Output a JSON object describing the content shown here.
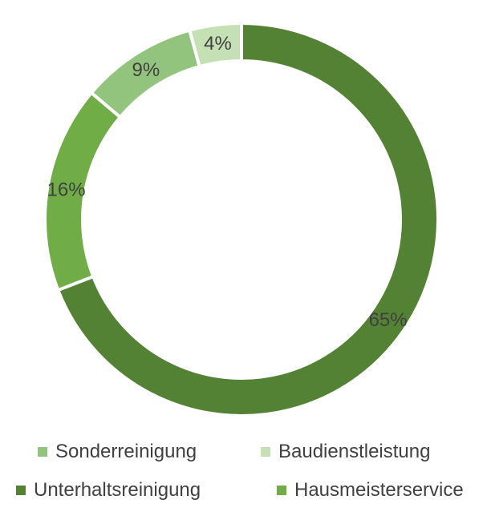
{
  "chart_data": {
    "type": "donut",
    "title": "",
    "series": [
      {
        "name": "Unterhaltsreinigung",
        "value": 65,
        "label": "65%",
        "color": "#538234"
      },
      {
        "name": "Hausmeisterservice",
        "value": 16,
        "label": "16%",
        "color": "#70ad47"
      },
      {
        "name": "Sonderreinigung",
        "value": 9,
        "label": "9%",
        "color": "#93c47d"
      },
      {
        "name": "Baudienstleistung",
        "value": 4,
        "label": "4%",
        "color": "#c5e0b4"
      }
    ],
    "legend_placement": "bottom",
    "legend": [
      {
        "name": "Sonderreinigung",
        "color": "#93c47d"
      },
      {
        "name": "Baudienstleistung",
        "color": "#c5e0b4"
      },
      {
        "name": "Unterhaltsreinigung",
        "color": "#538234"
      },
      {
        "name": "Hausmeisterservice",
        "color": "#70ad47"
      }
    ]
  }
}
